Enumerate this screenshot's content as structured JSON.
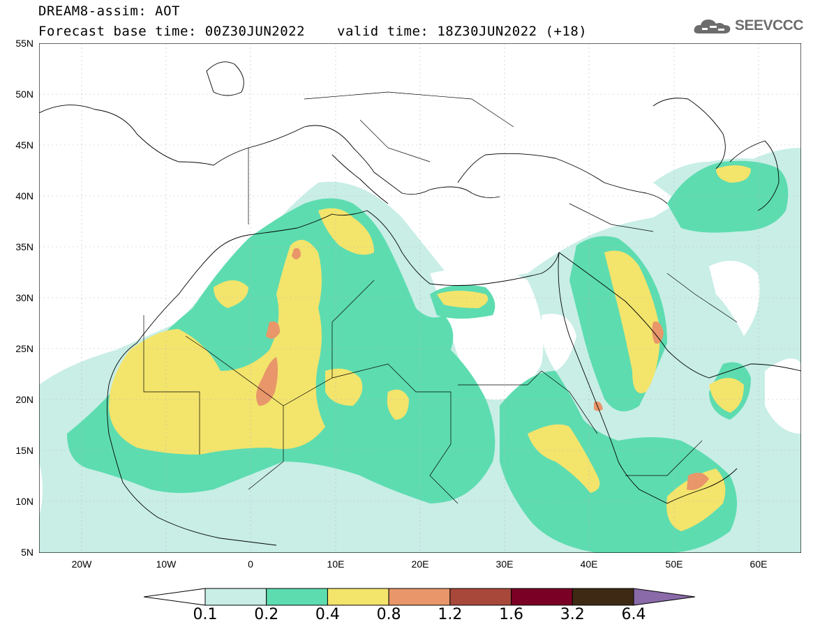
{
  "header": {
    "model_title": "DREAM8-assim: AOT",
    "base_time": "Forecast base time: 00Z30JUN2022",
    "valid_time": "valid time: 18Z30JUN2022 (+18)"
  },
  "logo": {
    "text": "SEEVCCC",
    "icon": "cloud-icon"
  },
  "axes": {
    "lat_labels": [
      "55N",
      "50N",
      "45N",
      "40N",
      "35N",
      "30N",
      "25N",
      "20N",
      "15N",
      "10N",
      "5N"
    ],
    "lon_labels": [
      "20W",
      "10W",
      "0",
      "10E",
      "20E",
      "30E",
      "40E",
      "50E",
      "60E"
    ],
    "lat_range": [
      5,
      55
    ],
    "lon_range": [
      -25,
      65
    ],
    "grid": true
  },
  "colorbar": {
    "levels": [
      "0.1",
      "0.2",
      "0.4",
      "0.8",
      "1.2",
      "1.6",
      "3.2",
      "6.4"
    ],
    "colors": [
      "#ffffff",
      "#c8eee6",
      "#5ddcb0",
      "#f3e46c",
      "#e8966a",
      "#a8483a",
      "#7a0025",
      "#3e2a14",
      "#8a6aa8"
    ]
  }
}
